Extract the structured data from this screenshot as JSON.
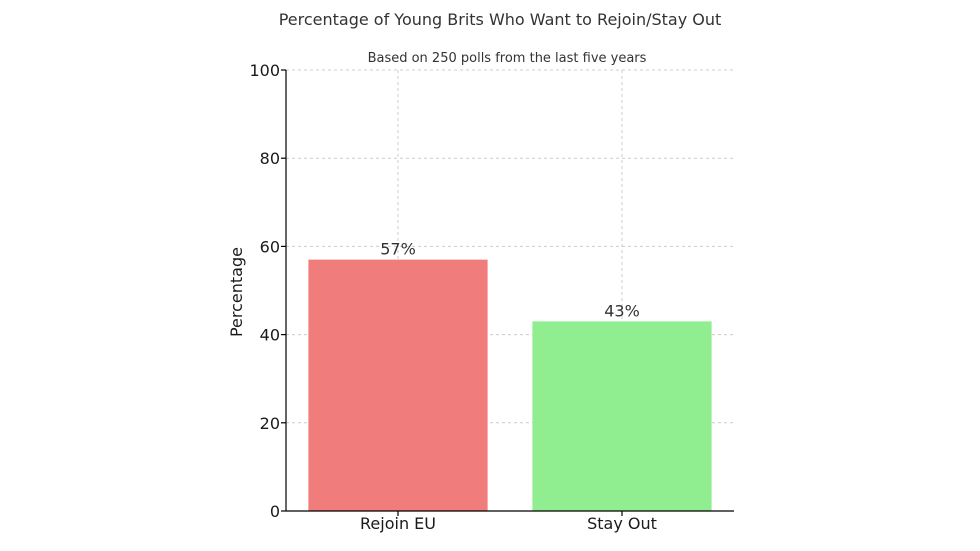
{
  "chart_data": {
    "type": "bar",
    "title": "Percentage of Young Brits Who Want to Rejoin/Stay Out",
    "subtitle": "Based on 250 polls from the last five years",
    "xlabel": "",
    "ylabel": "Percentage",
    "categories": [
      "Rejoin EU",
      "Stay Out"
    ],
    "values": [
      57,
      43
    ],
    "data_labels": [
      "57%",
      "43%"
    ],
    "colors": [
      "#f07c7c",
      "#90ee90"
    ],
    "ylim": [
      0,
      100
    ],
    "yticks": [
      "0",
      "20",
      "40",
      "60",
      "80",
      "100"
    ],
    "grid": true
  }
}
